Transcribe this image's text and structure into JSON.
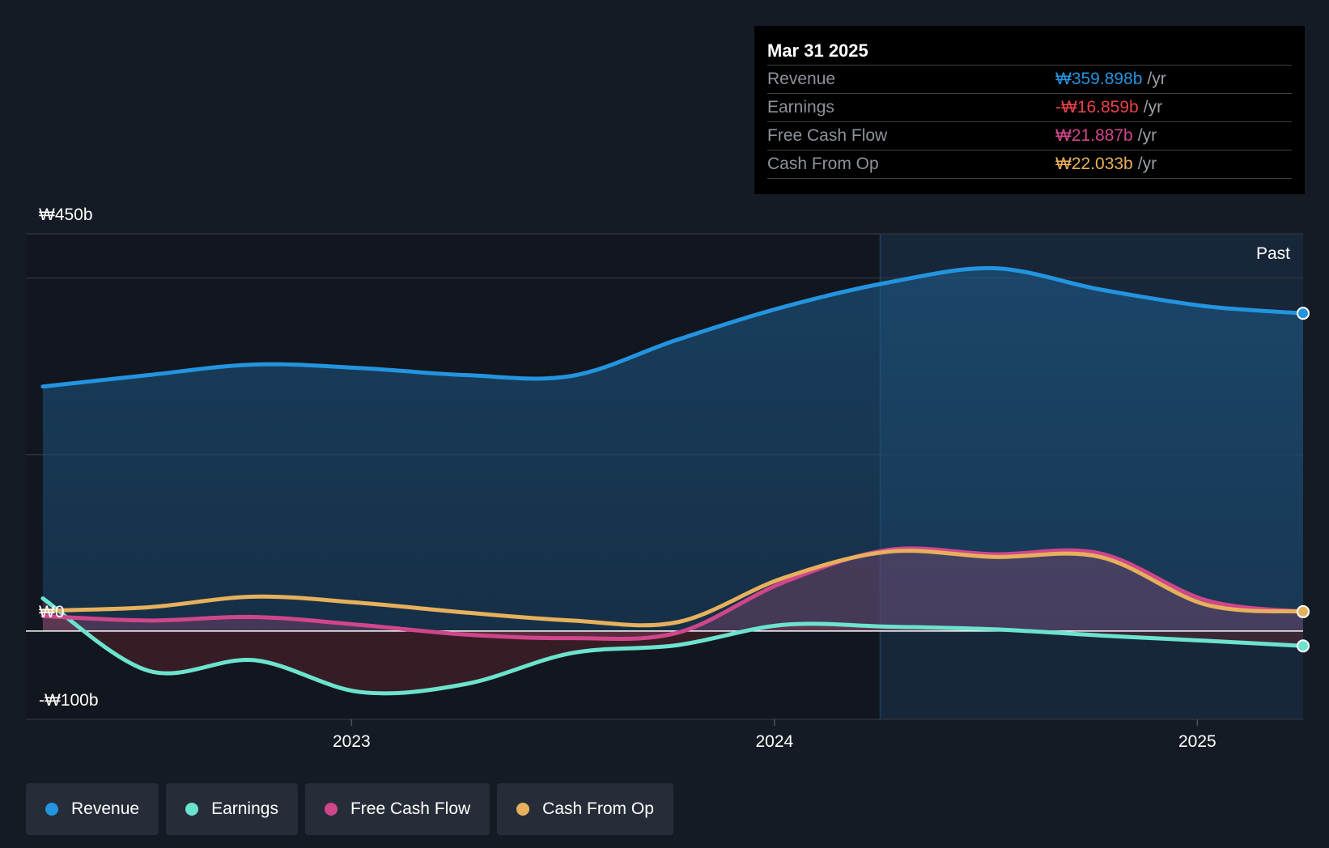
{
  "chart_data": {
    "type": "line",
    "title": "",
    "xlabel": "",
    "ylabel": "",
    "ylim": [
      -100,
      450
    ],
    "y_tick_labels": [
      "₩450b",
      "₩0",
      "-₩100b"
    ],
    "x_ticks": [
      2023,
      2024,
      2025
    ],
    "x_tick_labels": [
      "2023",
      "2024",
      "2025"
    ],
    "x": [
      2022.27,
      2022.52,
      2022.77,
      2023.02,
      2023.27,
      2023.52,
      2023.77,
      2024.02,
      2024.27,
      2024.52,
      2024.77,
      2025.02,
      2025.25
    ],
    "series": [
      {
        "name": "Revenue",
        "color": "#2394df",
        "fill": true,
        "values": [
          277,
          290,
          302,
          298,
          290,
          289,
          330,
          367,
          395,
          411,
          387,
          368,
          360
        ]
      },
      {
        "name": "Earnings",
        "color": "#6ce3cf",
        "fill": true,
        "values": [
          37,
          -45,
          -33,
          -69,
          -60,
          -25,
          -16,
          7,
          5,
          2,
          -5,
          -11,
          -16.859
        ]
      },
      {
        "name": "Free Cash Flow",
        "color": "#d0468b",
        "fill": true,
        "values": [
          17,
          12,
          16,
          7,
          -4,
          -8,
          -2,
          55,
          92,
          87,
          88,
          35,
          21.887
        ]
      },
      {
        "name": "Cash From Op",
        "color": "#e7b05d",
        "fill": false,
        "values": [
          23,
          27,
          39,
          32,
          21,
          12,
          10,
          60,
          90,
          84,
          84,
          30,
          22.033
        ]
      }
    ],
    "past_label": "Past",
    "past_start": 2024.25
  },
  "tooltip": {
    "date": "Mar 31 2025",
    "rows": [
      {
        "label": "Revenue",
        "value": "₩359.898b",
        "unit": "/yr",
        "color": "#2394df"
      },
      {
        "label": "Earnings",
        "value": "-₩16.859b",
        "unit": "/yr",
        "color": "#e8434a"
      },
      {
        "label": "Free Cash Flow",
        "value": "₩21.887b",
        "unit": "/yr",
        "color": "#d0468b"
      },
      {
        "label": "Cash From Op",
        "value": "₩22.033b",
        "unit": "/yr",
        "color": "#e7b05d"
      }
    ]
  },
  "legend": [
    {
      "label": "Revenue",
      "color": "#2394df"
    },
    {
      "label": "Earnings",
      "color": "#6ce3cf"
    },
    {
      "label": "Free Cash Flow",
      "color": "#d0468b"
    },
    {
      "label": "Cash From Op",
      "color": "#e7b05d"
    }
  ]
}
